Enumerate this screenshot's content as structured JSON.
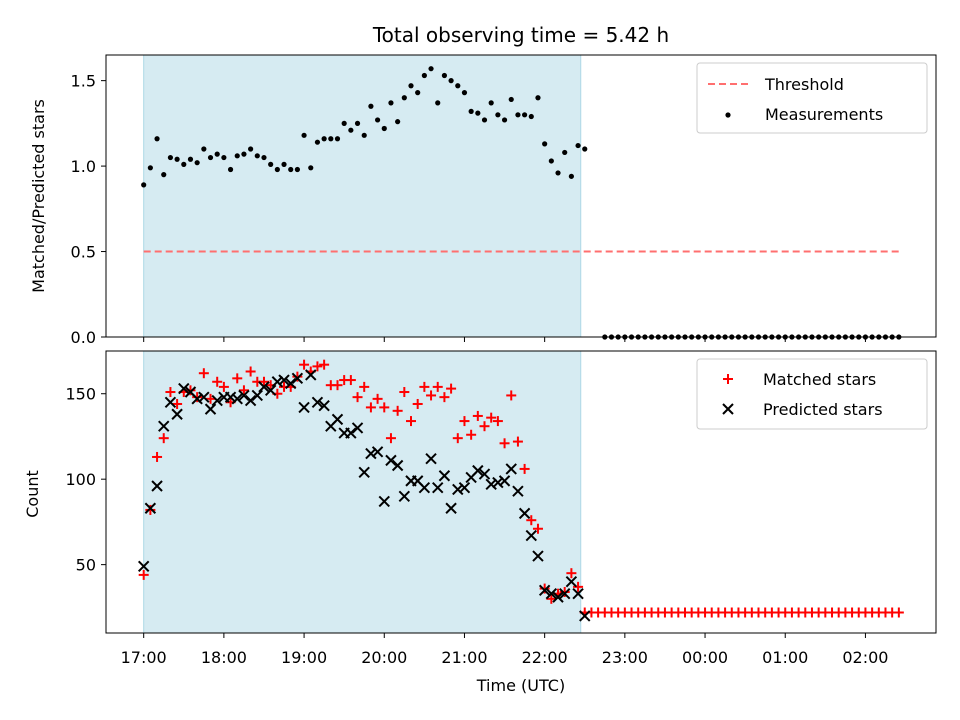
{
  "title": "Total observing time = 5.42 h",
  "colors": {
    "shade": "#add8e6",
    "threshold": "#ff6f6f",
    "measurements": "#000000",
    "matched": "#ff0000",
    "predicted": "#000000"
  },
  "chart_data": [
    {
      "type": "scatter",
      "ylabel": "Matched/Predicted stars",
      "xlabel": "",
      "ylim": [
        0,
        1.65
      ],
      "yticks": [
        "0.0",
        "0.5",
        "1.0",
        "1.5"
      ],
      "xlim_hours": [
        16.53,
        26.88
      ],
      "shaded_interval": [
        "17:00",
        "22:27"
      ],
      "legend": {
        "position": "upper right",
        "entries": [
          "Threshold",
          "Measurements"
        ]
      },
      "threshold": {
        "name": "Threshold",
        "value": 0.5,
        "x_range": [
          "17:00",
          "02:25"
        ],
        "style": "dashed"
      },
      "measurements": {
        "name": "Measurements",
        "points": [
          [
            "17:00",
            0.89
          ],
          [
            "17:05",
            0.99
          ],
          [
            "17:10",
            1.16
          ],
          [
            "17:15",
            0.95
          ],
          [
            "17:20",
            1.05
          ],
          [
            "17:25",
            1.04
          ],
          [
            "17:30",
            1.01
          ],
          [
            "17:35",
            1.04
          ],
          [
            "17:40",
            1.02
          ],
          [
            "17:45",
            1.1
          ],
          [
            "17:50",
            1.05
          ],
          [
            "17:55",
            1.07
          ],
          [
            "18:00",
            1.05
          ],
          [
            "18:05",
            0.98
          ],
          [
            "18:10",
            1.06
          ],
          [
            "18:15",
            1.07
          ],
          [
            "18:20",
            1.1
          ],
          [
            "18:25",
            1.06
          ],
          [
            "18:30",
            1.05
          ],
          [
            "18:35",
            1.01
          ],
          [
            "18:40",
            0.98
          ],
          [
            "18:45",
            1.01
          ],
          [
            "18:50",
            0.98
          ],
          [
            "18:55",
            0.98
          ],
          [
            "19:00",
            1.18
          ],
          [
            "19:05",
            0.99
          ],
          [
            "19:10",
            1.14
          ],
          [
            "19:15",
            1.16
          ],
          [
            "19:20",
            1.16
          ],
          [
            "19:25",
            1.16
          ],
          [
            "19:30",
            1.25
          ],
          [
            "19:35",
            1.21
          ],
          [
            "19:40",
            1.25
          ],
          [
            "19:45",
            1.18
          ],
          [
            "19:50",
            1.35
          ],
          [
            "19:55",
            1.27
          ],
          [
            "20:00",
            1.22
          ],
          [
            "20:05",
            1.37
          ],
          [
            "20:10",
            1.26
          ],
          [
            "20:15",
            1.4
          ],
          [
            "20:20",
            1.47
          ],
          [
            "20:25",
            1.43
          ],
          [
            "20:30",
            1.53
          ],
          [
            "20:35",
            1.57
          ],
          [
            "20:40",
            1.37
          ],
          [
            "20:45",
            1.53
          ],
          [
            "20:50",
            1.5
          ],
          [
            "20:55",
            1.47
          ],
          [
            "21:00",
            1.43
          ],
          [
            "21:05",
            1.32
          ],
          [
            "21:10",
            1.31
          ],
          [
            "21:15",
            1.27
          ],
          [
            "21:20",
            1.37
          ],
          [
            "21:25",
            1.3
          ],
          [
            "21:30",
            1.27
          ],
          [
            "21:35",
            1.39
          ],
          [
            "21:40",
            1.3
          ],
          [
            "21:45",
            1.3
          ],
          [
            "21:50",
            1.29
          ],
          [
            "21:55",
            1.4
          ],
          [
            "22:00",
            1.13
          ],
          [
            "22:05",
            1.03
          ],
          [
            "22:10",
            0.96
          ],
          [
            "22:15",
            1.08
          ],
          [
            "22:20",
            0.94
          ],
          [
            "22:25",
            1.12
          ],
          [
            "22:30",
            1.1
          ]
        ],
        "zeros_from_to": [
          "22:45",
          "02:25"
        ],
        "zero_value": 0.0
      }
    },
    {
      "type": "scatter",
      "ylabel": "Count",
      "xlabel": "Time (UTC)",
      "ylim": [
        10,
        175
      ],
      "yticks": [
        "50",
        "100",
        "150"
      ],
      "xticks": [
        "17:00",
        "18:00",
        "19:00",
        "20:00",
        "21:00",
        "22:00",
        "23:00",
        "00:00",
        "01:00",
        "02:00"
      ],
      "shaded_interval": [
        "17:00",
        "22:27"
      ],
      "legend": {
        "position": "upper right",
        "entries": [
          "Matched stars",
          "Predicted stars"
        ]
      },
      "series": [
        {
          "name": "Matched stars",
          "marker": "plus",
          "points": [
            [
              "17:00",
              44
            ],
            [
              "17:05",
              82
            ],
            [
              "17:10",
              113
            ],
            [
              "17:15",
              124
            ],
            [
              "17:20",
              151
            ],
            [
              "17:25",
              144
            ],
            [
              "17:30",
              151
            ],
            [
              "17:35",
              152
            ],
            [
              "17:40",
              148
            ],
            [
              "17:45",
              162
            ],
            [
              "17:50",
              147
            ],
            [
              "17:55",
              157
            ],
            [
              "18:00",
              154
            ],
            [
              "18:05",
              145
            ],
            [
              "18:10",
              159
            ],
            [
              "18:15",
              152
            ],
            [
              "18:20",
              163
            ],
            [
              "18:25",
              157
            ],
            [
              "18:30",
              157
            ],
            [
              "18:35",
              155
            ],
            [
              "18:40",
              150
            ],
            [
              "18:45",
              154
            ],
            [
              "18:50",
              154
            ],
            [
              "18:55",
              160
            ],
            [
              "19:00",
              167
            ],
            [
              "19:05",
              163
            ],
            [
              "19:10",
              166
            ],
            [
              "19:15",
              167
            ],
            [
              "19:20",
              155
            ],
            [
              "19:25",
              155
            ],
            [
              "19:30",
              158
            ],
            [
              "19:35",
              158
            ],
            [
              "19:40",
              148
            ],
            [
              "19:45",
              154
            ],
            [
              "19:50",
              142
            ],
            [
              "19:55",
              147
            ],
            [
              "20:00",
              142
            ],
            [
              "20:05",
              124
            ],
            [
              "20:10",
              140
            ],
            [
              "20:15",
              151
            ],
            [
              "20:20",
              134
            ],
            [
              "20:25",
              144
            ],
            [
              "20:30",
              154
            ],
            [
              "20:35",
              149
            ],
            [
              "20:40",
              154
            ],
            [
              "20:45",
              148
            ],
            [
              "20:50",
              153
            ],
            [
              "20:55",
              124
            ],
            [
              "21:00",
              134
            ],
            [
              "21:05",
              126
            ],
            [
              "21:10",
              137
            ],
            [
              "21:15",
              131
            ],
            [
              "21:20",
              136
            ],
            [
              "21:25",
              134
            ],
            [
              "21:30",
              121
            ],
            [
              "21:35",
              149
            ],
            [
              "21:40",
              122
            ],
            [
              "21:45",
              106
            ],
            [
              "21:50",
              76
            ],
            [
              "21:55",
              71
            ],
            [
              "22:00",
              36
            ],
            [
              "22:05",
              30
            ],
            [
              "22:10",
              33
            ],
            [
              "22:15",
              34
            ],
            [
              "22:20",
              45
            ],
            [
              "22:25",
              37
            ],
            [
              "22:30",
              22
            ]
          ],
          "constant_from_to": [
            "22:35",
            "02:25"
          ],
          "constant_value": 22
        },
        {
          "name": "Predicted stars",
          "marker": "x",
          "points": [
            [
              "17:00",
              49
            ],
            [
              "17:05",
              83
            ],
            [
              "17:10",
              96
            ],
            [
              "17:15",
              131
            ],
            [
              "17:20",
              145
            ],
            [
              "17:25",
              138
            ],
            [
              "17:30",
              153
            ],
            [
              "17:35",
              151
            ],
            [
              "17:40",
              147
            ],
            [
              "17:45",
              148
            ],
            [
              "17:50",
              141
            ],
            [
              "17:55",
              146
            ],
            [
              "18:00",
              148
            ],
            [
              "18:05",
              148
            ],
            [
              "18:10",
              147
            ],
            [
              "18:15",
              149
            ],
            [
              "18:20",
              146
            ],
            [
              "18:25",
              149
            ],
            [
              "18:30",
              154
            ],
            [
              "18:35",
              152
            ],
            [
              "18:40",
              157
            ],
            [
              "18:45",
              158
            ],
            [
              "18:50",
              156
            ],
            [
              "18:55",
              159
            ],
            [
              "19:00",
              142
            ],
            [
              "19:05",
              161
            ],
            [
              "19:10",
              145
            ],
            [
              "19:15",
              143
            ],
            [
              "19:20",
              131
            ],
            [
              "19:25",
              135
            ],
            [
              "19:30",
              127
            ],
            [
              "19:35",
              127
            ],
            [
              "19:40",
              130
            ],
            [
              "19:45",
              104
            ],
            [
              "19:50",
              115
            ],
            [
              "19:55",
              116
            ],
            [
              "20:00",
              87
            ],
            [
              "20:05",
              111
            ],
            [
              "20:10",
              108
            ],
            [
              "20:15",
              90
            ],
            [
              "20:20",
              99
            ],
            [
              "20:25",
              99
            ],
            [
              "20:30",
              95
            ],
            [
              "20:35",
              112
            ],
            [
              "20:40",
              95
            ],
            [
              "20:45",
              102
            ],
            [
              "20:50",
              83
            ],
            [
              "20:55",
              94
            ],
            [
              "21:00",
              95
            ],
            [
              "21:05",
              101
            ],
            [
              "21:10",
              105
            ],
            [
              "21:15",
              103
            ],
            [
              "21:20",
              97
            ],
            [
              "21:25",
              98
            ],
            [
              "21:30",
              99
            ],
            [
              "21:35",
              106
            ],
            [
              "21:40",
              93
            ],
            [
              "21:45",
              80
            ],
            [
              "21:50",
              67
            ],
            [
              "21:55",
              55
            ],
            [
              "22:00",
              35
            ],
            [
              "22:05",
              33
            ],
            [
              "22:10",
              31
            ],
            [
              "22:15",
              33
            ],
            [
              "22:20",
              40
            ],
            [
              "22:25",
              33
            ],
            [
              "22:30",
              20
            ]
          ]
        }
      ]
    }
  ]
}
